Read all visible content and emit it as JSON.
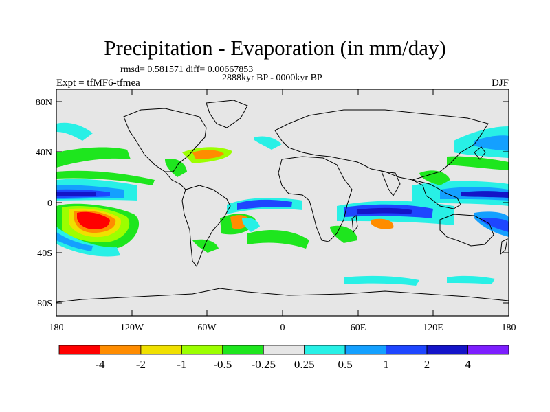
{
  "title": "Precipitation - Evaporation (in mm/day)",
  "stats": "rmsd= 0.581571 diff= 0.00667853",
  "period": "2888kyr BP - 0000kyr BP",
  "experiment": "Expt = tfMF6-tfmea",
  "season": "DJF",
  "map": {
    "background_color": "#e6e6e6",
    "lat_labels": [
      "80N",
      "40N",
      "0",
      "40S",
      "80S"
    ],
    "lon_labels": [
      "180",
      "120W",
      "60W",
      "0",
      "60E",
      "120E",
      "180"
    ]
  },
  "colorbar": {
    "colors": [
      "#ff0000",
      "#ff8c00",
      "#f0e000",
      "#9cff00",
      "#1ee61e",
      "#e6e6e6",
      "#28f0e6",
      "#14a0ff",
      "#1e46ff",
      "#1414c8",
      "#7d1eff"
    ],
    "labels": [
      "-4",
      "-2",
      "-1",
      "-0.5",
      "-0.25",
      "0.25",
      "0.5",
      "1",
      "2",
      "4"
    ]
  }
}
